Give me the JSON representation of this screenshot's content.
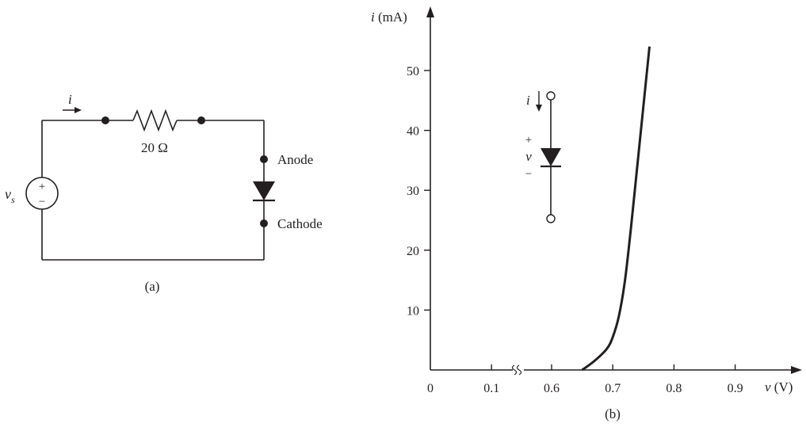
{
  "circuit": {
    "current_symbol": "i",
    "resistor_label": "20 Ω",
    "source_symbol": "v",
    "source_subscript": "s",
    "source_plus": "+",
    "source_minus": "−",
    "anode_label": "Anode",
    "cathode_label": "Cathode",
    "caption": "(a)"
  },
  "inset": {
    "current_symbol": "i",
    "plus": "+",
    "voltage_symbol": "v",
    "minus": "−"
  },
  "caption_b": "(b)",
  "chart_data": {
    "type": "line",
    "ylabel": "i (mA)",
    "xlabel": "v (V)",
    "x_ticks": [
      "0",
      "0.1",
      "0.6",
      "0.7",
      "0.8",
      "0.9"
    ],
    "y_ticks": [
      "10",
      "20",
      "30",
      "40",
      "50"
    ],
    "x_axis_break": "between 0.1 and 0.6",
    "grid": false,
    "series": [
      {
        "x": [
          0.65,
          0.67,
          0.69,
          0.7,
          0.71,
          0.72,
          0.73,
          0.74,
          0.75,
          0.76
        ],
        "y": [
          0,
          1.5,
          3.5,
          5.5,
          9,
          15,
          24,
          34,
          44,
          54
        ]
      }
    ]
  }
}
